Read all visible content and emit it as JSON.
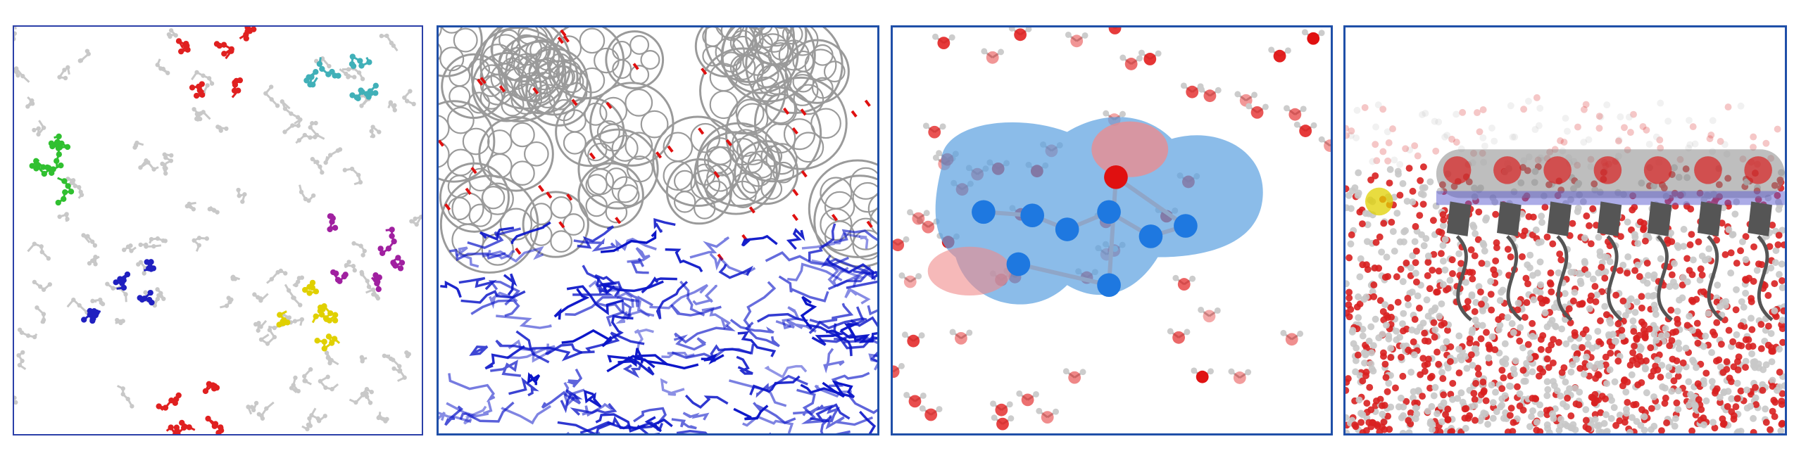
{
  "figure": {
    "panels": [
      {
        "id": "panel-1",
        "subject": "molecular-liquid-snapshot",
        "highlight_colors": [
          "#e02020",
          "#40b0b8",
          "#30c030",
          "#2020c0",
          "#a020a0",
          "#e0d000"
        ],
        "background_color": "#c8c8c8"
      },
      {
        "id": "panel-2",
        "subject": "fullerene-polymer-interface",
        "top_color": "#9a9a9a",
        "bottom_color": "#0a14c8",
        "accent_color": "#e01010"
      },
      {
        "id": "panel-3",
        "subject": "solvated-molecule-surface",
        "surface_color": "#5aa0e0",
        "atom_color": "#1e78e0",
        "oxygen_color": "#e01010"
      },
      {
        "id": "panel-4",
        "subject": "water-interface-peptide",
        "water_color": "#d82020",
        "peptide_color": "#555555",
        "marker_color": "#e0d000"
      }
    ]
  }
}
